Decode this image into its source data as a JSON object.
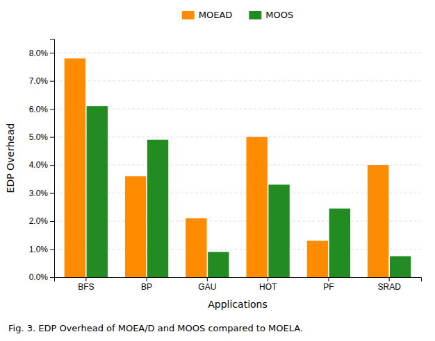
{
  "chart_data": {
    "type": "bar",
    "categories": [
      "BFS",
      "BP",
      "GAU",
      "HOT",
      "PF",
      "SRAD"
    ],
    "series": [
      {
        "name": "MOEAD",
        "color": "#FF8C00",
        "values": [
          0.078,
          0.036,
          0.021,
          0.05,
          0.013,
          0.04
        ]
      },
      {
        "name": "MOOS",
        "color": "#228B22",
        "values": [
          0.061,
          0.049,
          0.009,
          0.033,
          0.0245,
          0.0075
        ]
      }
    ],
    "xlabel": "Applications",
    "ylabel": "EDP Overhead",
    "caption": "Fig. 3. EDP Overhead of MOEA/D and MOOS compared to MOELA.",
    "ylim": [
      0.0,
      0.085
    ],
    "yticks": [
      {
        "value": 0.0,
        "label": "0.0%"
      },
      {
        "value": 0.01,
        "label": "1.0%"
      },
      {
        "value": 0.02,
        "label": "2.0%"
      },
      {
        "value": 0.03,
        "label": "3.0%"
      },
      {
        "value": 0.04,
        "label": "4.0%"
      },
      {
        "value": 0.05,
        "label": "5.0%"
      },
      {
        "value": 0.06,
        "label": "6.0%"
      },
      {
        "value": 0.07,
        "label": "7.0%"
      },
      {
        "value": 0.08,
        "label": "8.0%"
      }
    ],
    "grid": true,
    "legend": "top"
  }
}
